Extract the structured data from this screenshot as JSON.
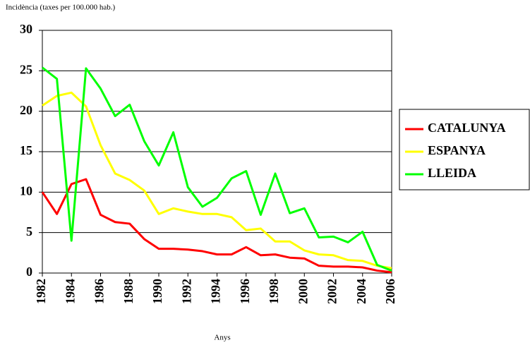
{
  "chart_data": {
    "type": "line",
    "y_label": "Incidència (taxes per 100.000 hab.)",
    "x_label": "Anys",
    "x": [
      1982,
      1983,
      1984,
      1985,
      1986,
      1987,
      1988,
      1989,
      1990,
      1991,
      1992,
      1993,
      1994,
      1995,
      1996,
      1997,
      1998,
      1999,
      2000,
      2001,
      2002,
      2003,
      2004,
      2005,
      2006
    ],
    "series": [
      {
        "name": "CATALUNYA",
        "color": "#ff0000",
        "values": [
          10.0,
          7.3,
          11.0,
          11.6,
          7.2,
          6.3,
          6.1,
          4.2,
          3.0,
          3.0,
          2.9,
          2.7,
          2.3,
          2.3,
          3.2,
          2.2,
          2.3,
          1.9,
          1.8,
          0.9,
          0.8,
          0.8,
          0.7,
          0.3,
          0.1
        ]
      },
      {
        "name": "ESPANYA",
        "color": "#ffff00",
        "values": [
          20.7,
          21.9,
          22.3,
          20.6,
          15.8,
          12.3,
          11.5,
          10.2,
          7.3,
          8.0,
          7.6,
          7.3,
          7.3,
          6.9,
          5.3,
          5.5,
          3.9,
          3.9,
          2.8,
          2.3,
          2.2,
          1.6,
          1.5,
          0.9,
          0.6
        ]
      },
      {
        "name": "LLEIDA",
        "color": "#00ff00",
        "values": [
          25.4,
          24.0,
          4.0,
          25.3,
          22.8,
          19.4,
          20.8,
          16.3,
          13.3,
          17.4,
          10.6,
          8.2,
          9.3,
          11.7,
          12.6,
          7.2,
          12.3,
          7.4,
          8.0,
          4.4,
          4.5,
          3.8,
          5.1,
          1.0,
          0.3
        ]
      }
    ],
    "xlim": [
      1982,
      2006
    ],
    "xticks": [
      1982,
      1984,
      1986,
      1988,
      1990,
      1992,
      1994,
      1996,
      1998,
      2000,
      2002,
      2004,
      2006
    ],
    "ylim": [
      0,
      30
    ],
    "yticks": [
      0,
      5,
      10,
      15,
      20,
      25,
      30
    ],
    "grid": true,
    "legend": "right"
  }
}
